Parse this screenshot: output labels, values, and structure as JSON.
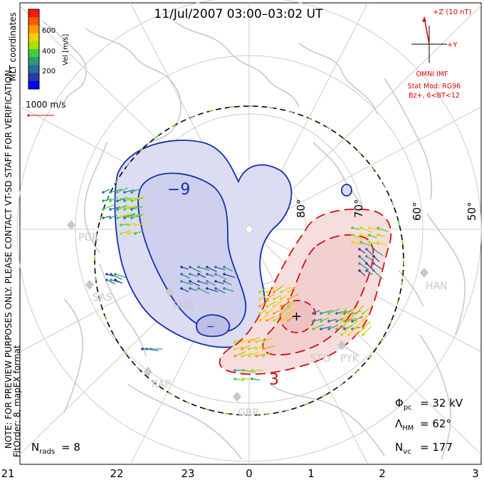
{
  "title": "11/Jul/2007 03:00–03:02 UT",
  "colorbar": {
    "label": "Vel [m/s]",
    "ticks": [
      "600",
      "400",
      "200"
    ],
    "colors": [
      "#ff1a00",
      "#ff5a00",
      "#ff9a00",
      "#ffcc00",
      "#a8e000",
      "#44cc44",
      "#2a9a7a",
      "#2a6aa0",
      "#2a3aa0",
      "#0000ff"
    ]
  },
  "coord_system": "MLT coordinates",
  "vector_scale": "1000 m/s",
  "imf": {
    "z_label": "+Z (10 nT)",
    "y_label": "+Y",
    "source": "OMNI IMF",
    "model": "Stat Mod: RG96",
    "condition": "Bz+, 6<BT<12"
  },
  "notice": "NOTE: FOR PREVIEW PURPOSES ONLY. PLEASE CONTACT VT-SD STAFF FOR VERIFICATION.",
  "fit_info": "FitOrder: 8,  mapEX format",
  "latitude_labels": [
    "80°",
    "70°",
    "60°",
    "50°"
  ],
  "mlt_labels": [
    "21",
    "22",
    "23",
    "0",
    "1",
    "2",
    "3"
  ],
  "radar_stations": [
    "PGR",
    "SAS",
    "RKN",
    "KAP",
    "GBR",
    "STO",
    "PYK",
    "HAN"
  ],
  "contours": {
    "negative_label": "−9",
    "negative_min_label": "−",
    "positive_label": "3",
    "positive_max_label": "+"
  },
  "stats": {
    "phi_pc_label": "Φ",
    "phi_pc_sub": "pc",
    "phi_pc_value": "= 32 kV",
    "lambda_hm_label": "Λ",
    "lambda_hm_sub": "HM",
    "lambda_hm_value": "= 62°",
    "n_vc_label": "N",
    "n_vc_sub": "vc",
    "n_vc_value": "= 177",
    "n_rads_label": "N",
    "n_rads_sub": "rads",
    "n_rads_value": "= 8"
  },
  "colors": {
    "negative_cell_fill": "#dcdcf2",
    "negative_cell_line": "#1030b0",
    "positive_cell_fill": "#f6dede",
    "positive_cell_line": "#d01010",
    "grid": "#cccccc",
    "coast": "#c8c8c8",
    "boundary_line": "#000000",
    "boundary_vectors": "#66cc33",
    "annotation_red": "#dd0000"
  }
}
